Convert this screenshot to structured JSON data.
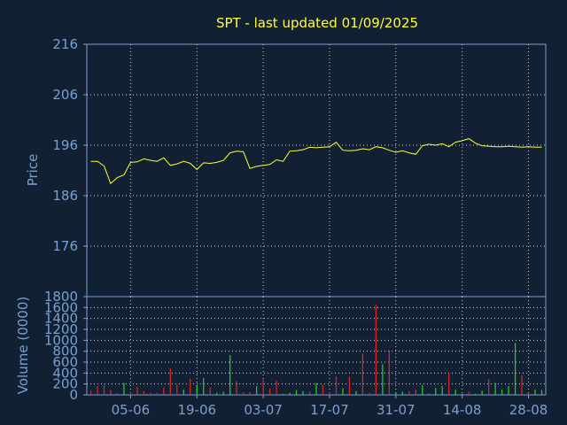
{
  "chart_data": [
    {
      "type": "line",
      "title": "SPT - last updated 01/09/2025",
      "ylabel": "Price",
      "ylim": [
        166,
        216
      ],
      "yticks": [
        "216",
        "206",
        "196",
        "186",
        "176"
      ],
      "line_color": "#ffff33",
      "grid": true,
      "x": [
        "28-05",
        "29-05",
        "30-05",
        "02-06",
        "03-06",
        "04-06",
        "05-06",
        "06-06",
        "09-06",
        "10-06",
        "11-06",
        "12-06",
        "13-06",
        "16-06",
        "17-06",
        "18-06",
        "19-06",
        "20-06",
        "23-06",
        "24-06",
        "25-06",
        "26-06",
        "27-06",
        "30-06",
        "01-07",
        "02-07",
        "03-07",
        "04-07",
        "07-07",
        "08-07",
        "09-07",
        "10-07",
        "11-07",
        "14-07",
        "15-07",
        "16-07",
        "17-07",
        "18-07",
        "21-07",
        "22-07",
        "23-07",
        "24-07",
        "25-07",
        "28-07",
        "29-07",
        "30-07",
        "31-07",
        "01-08",
        "04-08",
        "05-08",
        "06-08",
        "07-08",
        "08-08",
        "11-08",
        "12-08",
        "13-08",
        "14-08",
        "15-08",
        "18-08",
        "19-08",
        "20-08",
        "21-08",
        "22-08",
        "25-08",
        "26-08",
        "27-08",
        "28-08",
        "29-08",
        "01-09"
      ],
      "values": [
        192.8,
        192.8,
        191.9,
        188.4,
        189.6,
        190.1,
        192.6,
        192.7,
        193.3,
        193.0,
        192.8,
        193.5,
        192.0,
        192.3,
        192.8,
        192.4,
        191.2,
        192.5,
        192.4,
        192.6,
        193.0,
        194.5,
        194.8,
        194.7,
        191.4,
        191.8,
        192.0,
        192.2,
        193.1,
        192.8,
        194.8,
        194.9,
        195.1,
        195.6,
        195.5,
        195.6,
        195.7,
        196.6,
        195.0,
        194.9,
        195.0,
        195.3,
        195.1,
        195.7,
        195.5,
        195.0,
        194.6,
        194.9,
        194.5,
        194.2,
        195.9,
        196.2,
        196.0,
        196.3,
        195.7,
        196.6,
        196.9,
        197.3,
        196.4,
        195.9,
        195.8,
        195.7,
        195.7,
        195.8,
        195.7,
        195.6,
        195.7,
        195.6,
        195.6
      ]
    },
    {
      "type": "bar",
      "ylabel": "Volume (0000)",
      "ylim": [
        0,
        1800
      ],
      "yticks": [
        "1800",
        "1600",
        "1400",
        "1200",
        "1000",
        "800",
        "600",
        "400",
        "200",
        "0"
      ],
      "up_color": "#22cc22",
      "down_color": "#dd2222",
      "xticks": [
        "05-06",
        "19-06",
        "03-07",
        "17-07",
        "31-07",
        "14-08",
        "28-08"
      ],
      "values": [
        80,
        160,
        190,
        90,
        20,
        220,
        60,
        150,
        70,
        40,
        40,
        140,
        480,
        180,
        100,
        300,
        170,
        310,
        140,
        40,
        60,
        730,
        250,
        50,
        50,
        160,
        280,
        120,
        260,
        20,
        40,
        90,
        70,
        60,
        220,
        180,
        50,
        340,
        120,
        340,
        70,
        760,
        40,
        1650,
        560,
        820,
        50,
        60,
        70,
        100,
        180,
        20,
        130,
        160,
        400,
        100,
        20,
        60,
        20,
        80,
        290,
        220,
        100,
        160,
        950,
        360,
        40,
        100,
        90
      ],
      "up": [
        0,
        0,
        0,
        0,
        1,
        1,
        0,
        0,
        0,
        0,
        0,
        0,
        0,
        0,
        1,
        0,
        1,
        1,
        0,
        1,
        1,
        1,
        0,
        0,
        0,
        1,
        0,
        0,
        0,
        1,
        1,
        1,
        1,
        0,
        1,
        0,
        0,
        0,
        1,
        0,
        1,
        0,
        0,
        0,
        1,
        0,
        1,
        1,
        0,
        0,
        1,
        1,
        1,
        1,
        0,
        1,
        1,
        0,
        1,
        1,
        0,
        1,
        1,
        1,
        1,
        0,
        0,
        1,
        1
      ]
    }
  ]
}
